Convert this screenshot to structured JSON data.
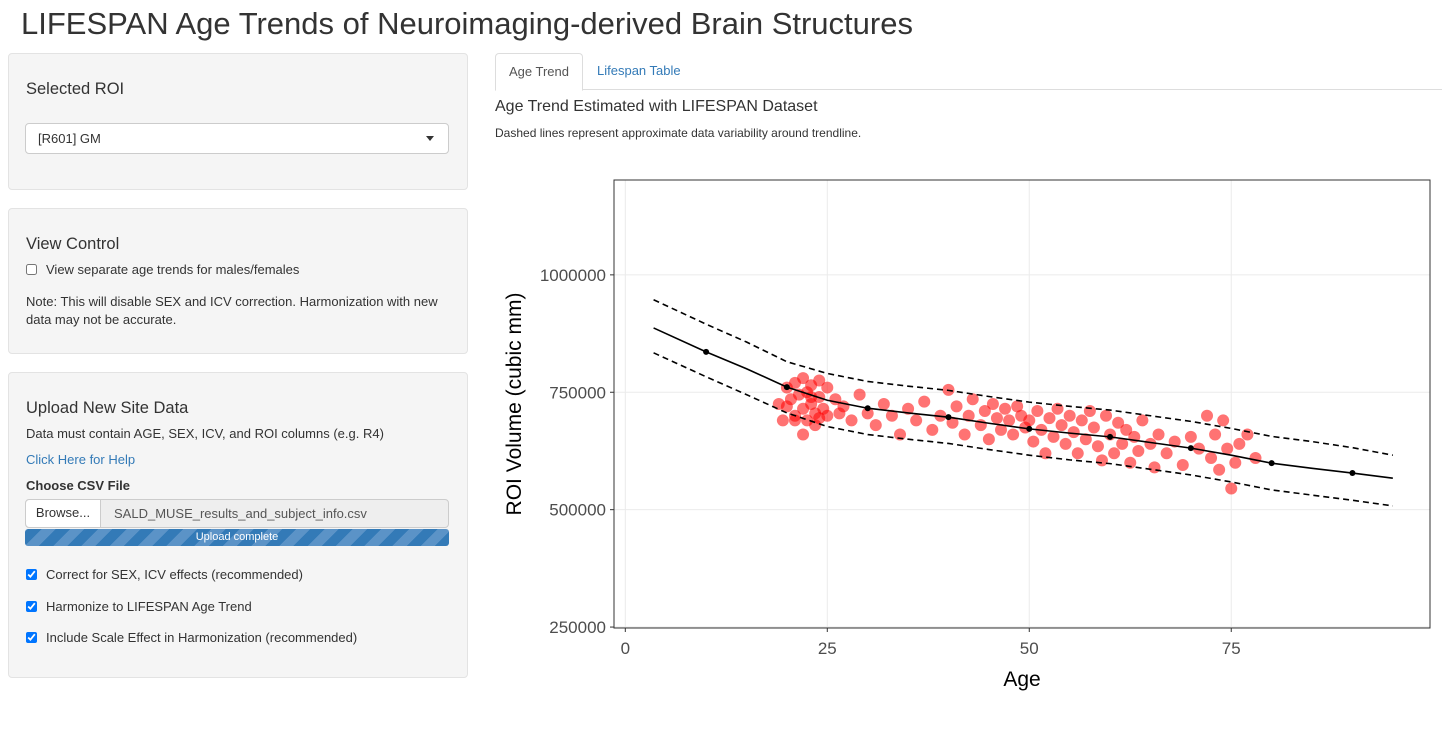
{
  "header": {
    "title": "LIFESPAN Age Trends of Neuroimaging-derived Brain Structures"
  },
  "roi_panel": {
    "label": "Selected ROI",
    "selected": "[R601] GM"
  },
  "view_panel": {
    "title": "View Control",
    "checkbox": {
      "label": "View separate age trends for males/females",
      "checked": false
    },
    "note": "Note: This will disable SEX and ICV correction. Harmonization with new data may not be accurate."
  },
  "upload_panel": {
    "title": "Upload New Site Data",
    "description": "Data must contain AGE, SEX, ICV, and ROI columns (e.g. R4)",
    "help_link": "Click Here for Help",
    "file_label": "Choose CSV File",
    "browse_button": "Browse...",
    "file_name": "SALD_MUSE_results_and_subject_info.csv",
    "progress": "Upload complete",
    "options": [
      {
        "label": "Correct for SEX, ICV effects (recommended)",
        "checked": true
      },
      {
        "label": "Harmonize to LIFESPAN Age Trend",
        "checked": true
      },
      {
        "label": "Include Scale Effect in Harmonization (recommended)",
        "checked": true
      }
    ]
  },
  "tabs": [
    "Age Trend",
    "Lifespan Table"
  ],
  "plot_heading": "Age Trend Estimated with LIFESPAN Dataset",
  "plot_note": "Dashed lines represent approximate data variability around trendline.",
  "chart_data": {
    "type": "scatter",
    "xlabel": "Age",
    "ylabel": "ROI Volume (cubic mm)",
    "xlim": [
      -1.4,
      99.6
    ],
    "ylim": [
      248000,
      1202000
    ],
    "xticks": [
      0,
      25,
      50,
      75
    ],
    "yticks": [
      250000,
      500000,
      750000,
      1000000
    ],
    "grid": true,
    "series": [
      {
        "kind": "points",
        "color": "#ff0000",
        "alpha": 0.55,
        "x": [
          19,
          19.5,
          20,
          20.5,
          21,
          21,
          21.5,
          22,
          22,
          22.5,
          22.5,
          23,
          23,
          23.5,
          23.5,
          24,
          24,
          24.5,
          25,
          25,
          22,
          21,
          20,
          23,
          24,
          26,
          26.5,
          27,
          28,
          29,
          30,
          31,
          32,
          33,
          34,
          35,
          36,
          37,
          38,
          39,
          40,
          40.5,
          41,
          42,
          42.5,
          43,
          44,
          44.5,
          45,
          45.5,
          46,
          46.5,
          47,
          47.5,
          48,
          48.5,
          49,
          49.5,
          50,
          50.5,
          51,
          51.5,
          52,
          52.5,
          53,
          53.5,
          54,
          54.5,
          55,
          55.5,
          56,
          56.5,
          57,
          57.5,
          58,
          58.5,
          59,
          59.5,
          60,
          60.5,
          61,
          61.5,
          62,
          62.5,
          63,
          63.5,
          64,
          65,
          65.5,
          66,
          67,
          68,
          69,
          70,
          71,
          72,
          72.5,
          73,
          73.5,
          74,
          74.5,
          75,
          75.5,
          76,
          77,
          78
        ],
        "values": [
          725000,
          690000,
          760000,
          735000,
          700000,
          770000,
          745000,
          780000,
          715000,
          690000,
          750000,
          765000,
          725000,
          705000,
          680000,
          775000,
          740000,
          715000,
          760000,
          700000,
          660000,
          690000,
          720000,
          740000,
          695000,
          735000,
          705000,
          720000,
          690000,
          745000,
          705000,
          680000,
          725000,
          700000,
          660000,
          715000,
          690000,
          730000,
          670000,
          700000,
          755000,
          685000,
          720000,
          660000,
          700000,
          735000,
          680000,
          710000,
          650000,
          725000,
          695000,
          670000,
          715000,
          690000,
          660000,
          720000,
          700000,
          675000,
          690000,
          645000,
          710000,
          670000,
          620000,
          695000,
          655000,
          715000,
          680000,
          640000,
          700000,
          665000,
          620000,
          690000,
          650000,
          710000,
          675000,
          635000,
          605000,
          700000,
          660000,
          620000,
          685000,
          640000,
          670000,
          600000,
          655000,
          625000,
          690000,
          640000,
          590000,
          660000,
          620000,
          645000,
          595000,
          655000,
          630000,
          700000,
          610000,
          660000,
          585000,
          690000,
          630000,
          545000,
          600000,
          640000,
          660000,
          610000
        ]
      },
      {
        "kind": "line",
        "color": "#000000",
        "dash": true,
        "x": [
          3.5,
          10,
          15,
          20,
          25,
          30,
          35,
          40,
          45,
          50,
          55,
          60,
          65,
          70,
          75,
          80,
          85,
          90,
          95
        ],
        "values": [
          947000,
          895000,
          857000,
          815000,
          790000,
          773000,
          763000,
          754000,
          741000,
          729000,
          720000,
          712000,
          700000,
          688000,
          673000,
          656000,
          645000,
          632000,
          616000
        ]
      },
      {
        "kind": "line",
        "color": "#000000",
        "dash": false,
        "x": [
          3.5,
          10,
          15,
          20,
          25,
          30,
          35,
          40,
          45,
          50,
          55,
          60,
          65,
          70,
          75,
          80,
          85,
          90,
          95
        ],
        "values": [
          887000,
          836000,
          800000,
          761000,
          733000,
          716000,
          706000,
          697000,
          684000,
          672000,
          663000,
          655000,
          643000,
          631000,
          616000,
          599000,
          588000,
          578000,
          567000
        ]
      },
      {
        "kind": "line",
        "color": "#000000",
        "dash": true,
        "x": [
          3.5,
          10,
          15,
          20,
          25,
          30,
          35,
          40,
          45,
          50,
          55,
          60,
          65,
          70,
          75,
          80,
          85,
          90,
          95
        ],
        "values": [
          834000,
          783000,
          745000,
          706000,
          677000,
          660000,
          650000,
          641000,
          628000,
          616000,
          606000,
          598000,
          586000,
          574000,
          559000,
          542000,
          531000,
          520000,
          508000
        ]
      },
      {
        "kind": "points",
        "color": "#000000",
        "alpha": 1,
        "x": [
          10,
          20,
          30,
          40,
          50,
          60,
          70,
          80,
          90
        ],
        "values": [
          836000,
          761000,
          716000,
          697000,
          672000,
          655000,
          631000,
          599000,
          578000
        ]
      }
    ]
  }
}
